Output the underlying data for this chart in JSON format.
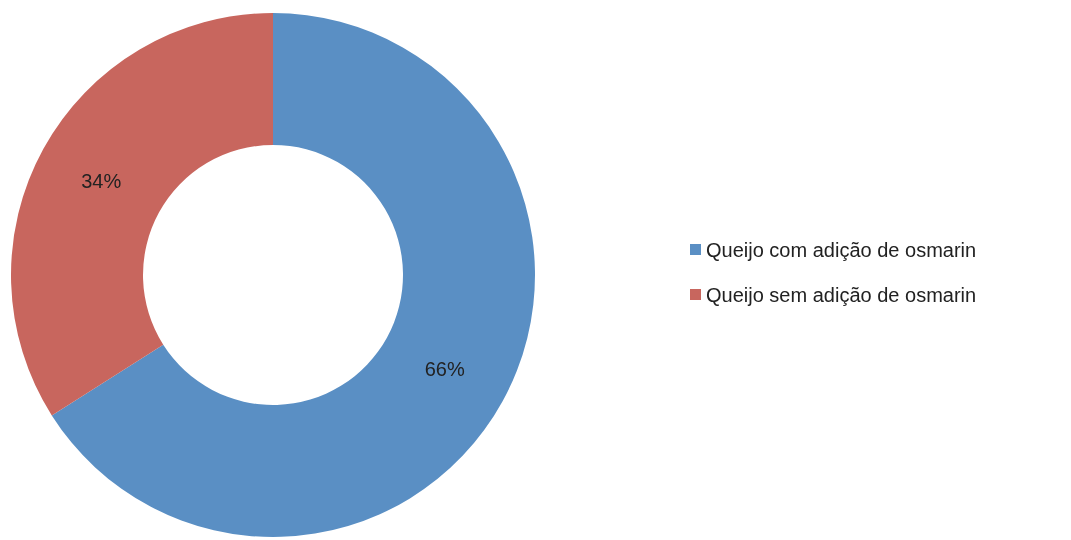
{
  "chart_data": {
    "type": "donut",
    "categories": [
      "Queijo com adição de osmarin",
      "Queijo sem adição de osmarin"
    ],
    "values": [
      66,
      34
    ],
    "colors": [
      "#5a8fc4",
      "#c8665e"
    ],
    "value_labels": [
      "66%",
      "34%"
    ],
    "legend": "right"
  }
}
